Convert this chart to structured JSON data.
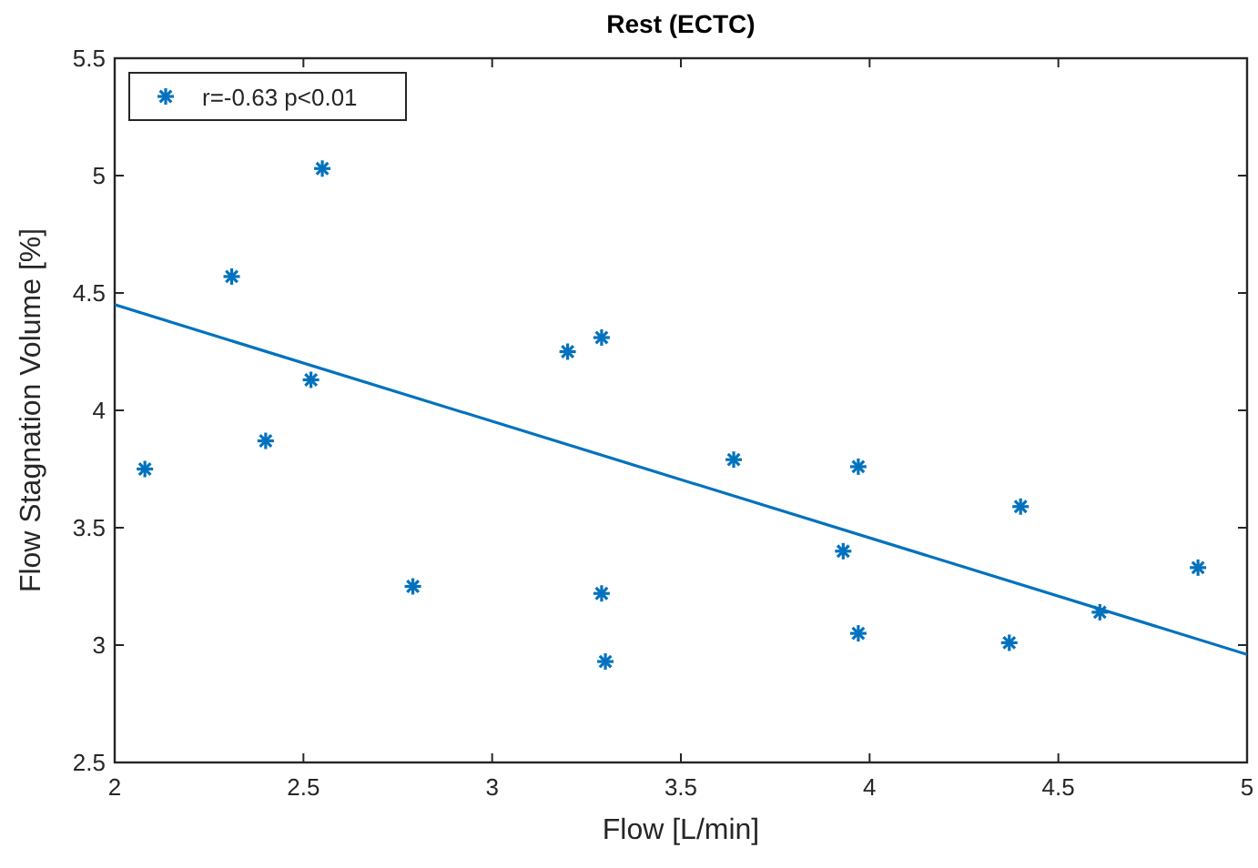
{
  "chart_data": {
    "type": "scatter",
    "title": "Rest (ECTC)",
    "xlabel": "Flow [L/min]",
    "ylabel": "Flow Stagnation Volume [%]",
    "xlim": [
      2,
      5
    ],
    "xticks": [
      2,
      2.5,
      3,
      3.5,
      4,
      4.5,
      5
    ],
    "ylim": [
      2.5,
      5.5
    ],
    "yticks": [
      2.5,
      3,
      3.5,
      4,
      4.5,
      5,
      5.5
    ],
    "grid": false,
    "legend": "top left",
    "series": [
      {
        "name": "r=-0.63 p<0.01",
        "color": "#0072bd",
        "marker": "cross",
        "x": [
          2.08,
          2.31,
          2.55,
          2.52,
          2.4,
          2.79,
          3.2,
          3.29,
          3.29,
          3.3,
          3.64,
          3.97,
          3.93,
          3.97,
          4.4,
          4.37,
          4.61,
          4.87
        ],
        "values": [
          3.75,
          4.57,
          5.03,
          4.13,
          3.87,
          3.25,
          4.25,
          4.31,
          3.22,
          2.93,
          3.79,
          3.76,
          3.4,
          3.05,
          3.59,
          3.01,
          3.14,
          3.33
        ]
      },
      {
        "type": "line",
        "color": "#0072bd",
        "marker": "none",
        "x": [
          2,
          5
        ],
        "values": [
          4.45,
          2.96
        ]
      }
    ]
  }
}
